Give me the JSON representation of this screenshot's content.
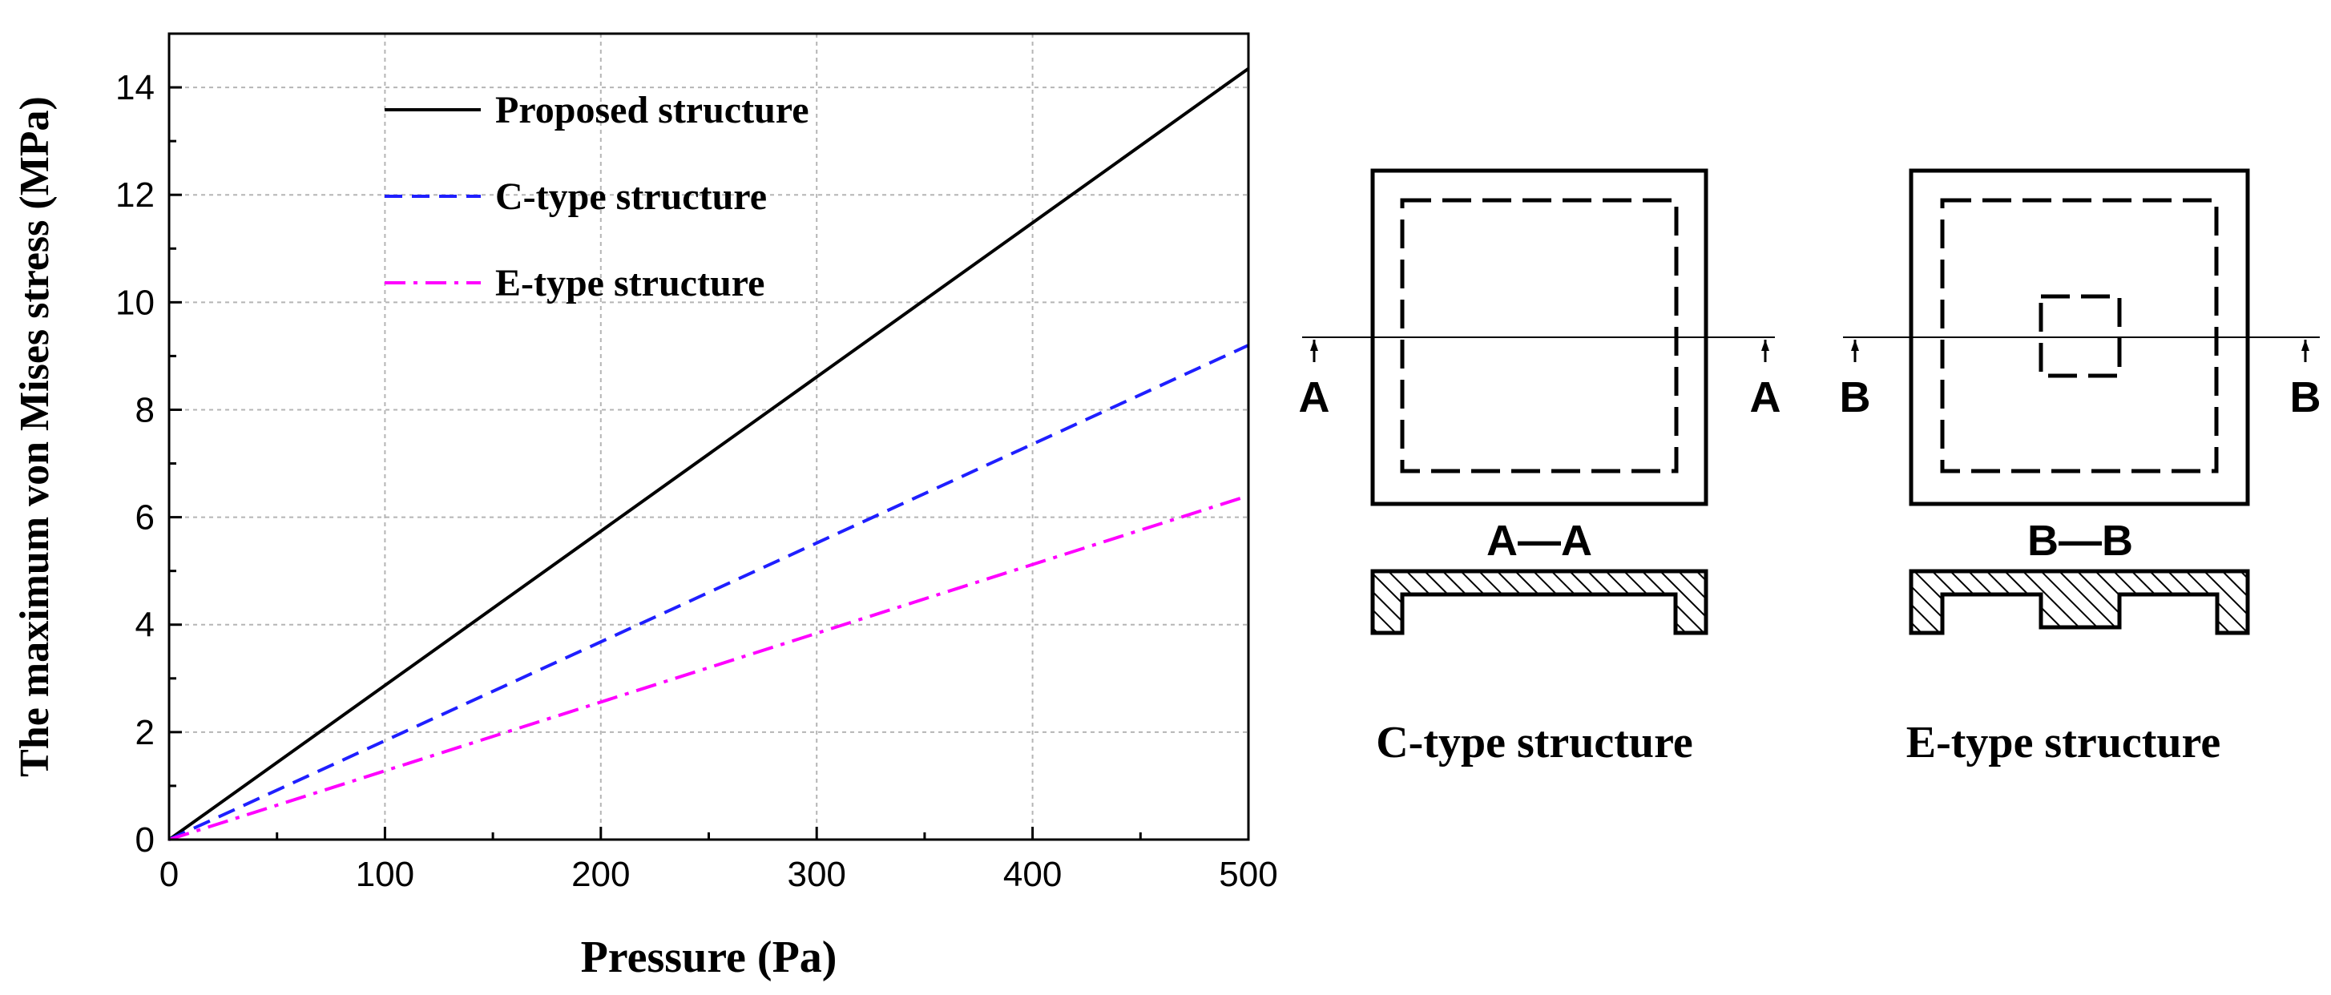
{
  "chart_data": {
    "type": "line",
    "xlabel": "Pressure (Pa)",
    "ylabel": "The maximum von Mises stress (MPa)",
    "xlim": [
      0,
      500
    ],
    "ylim": [
      0,
      15
    ],
    "xticks": [
      0,
      100,
      200,
      300,
      400,
      500
    ],
    "yticks": [
      0,
      2,
      4,
      6,
      8,
      10,
      12,
      14
    ],
    "grid": true,
    "legend_position": "top-left",
    "series": [
      {
        "name": "Proposed structure",
        "color": "#000000",
        "dash": "solid",
        "x": [
          0,
          500
        ],
        "y": [
          0,
          14.35
        ]
      },
      {
        "name": "C-type structure",
        "color": "#1f1fff",
        "dash": "dashed",
        "x": [
          0,
          500
        ],
        "y": [
          0,
          9.2
        ]
      },
      {
        "name": "E-type structure",
        "color": "#ff00ff",
        "dash": "dash-dot",
        "x": [
          0,
          500
        ],
        "y": [
          0,
          6.4
        ]
      }
    ]
  },
  "diagrams": {
    "c_type": {
      "caption": "C-type structure",
      "section_label": "A—A",
      "cut_marker": "A"
    },
    "e_type": {
      "caption": "E-type structure",
      "section_label": "B—B",
      "cut_marker": "B"
    }
  }
}
